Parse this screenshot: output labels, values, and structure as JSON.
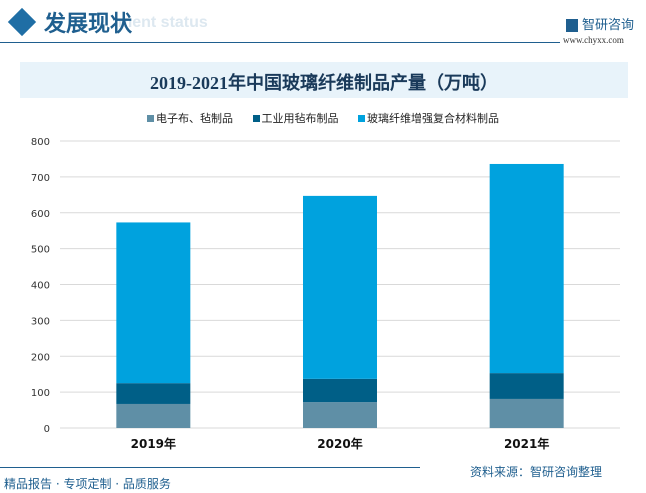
{
  "header": {
    "title": "发展现状",
    "subtitle": "ment status",
    "logo": "智研咨询",
    "url": "www.chyxx.com"
  },
  "footer": {
    "tagline": "精品报告 · 专项定制 · 品质服务",
    "source": "资料来源：智研咨询整理"
  },
  "chart_data": {
    "type": "bar",
    "stacked": true,
    "title": "2019-2021年中国玻璃纤维制品产量（万吨）",
    "categories": [
      "2019年",
      "2020年",
      "2021年"
    ],
    "series": [
      {
        "name": "电子布、毡制品",
        "values": [
          67,
          72,
          81
        ],
        "color": "#5f8fa6"
      },
      {
        "name": "工业用毡布制品",
        "values": [
          58,
          65,
          72
        ],
        "color": "#005f87"
      },
      {
        "name": "玻璃纤维增强复合材料制品",
        "values": [
          448,
          510,
          583
        ],
        "color": "#00a2de"
      }
    ],
    "ylim": [
      0,
      800
    ],
    "yticks": [
      "0",
      "100",
      "200",
      "300",
      "400",
      "500",
      "600",
      "700",
      "800"
    ],
    "grid": true,
    "legend": "top"
  }
}
